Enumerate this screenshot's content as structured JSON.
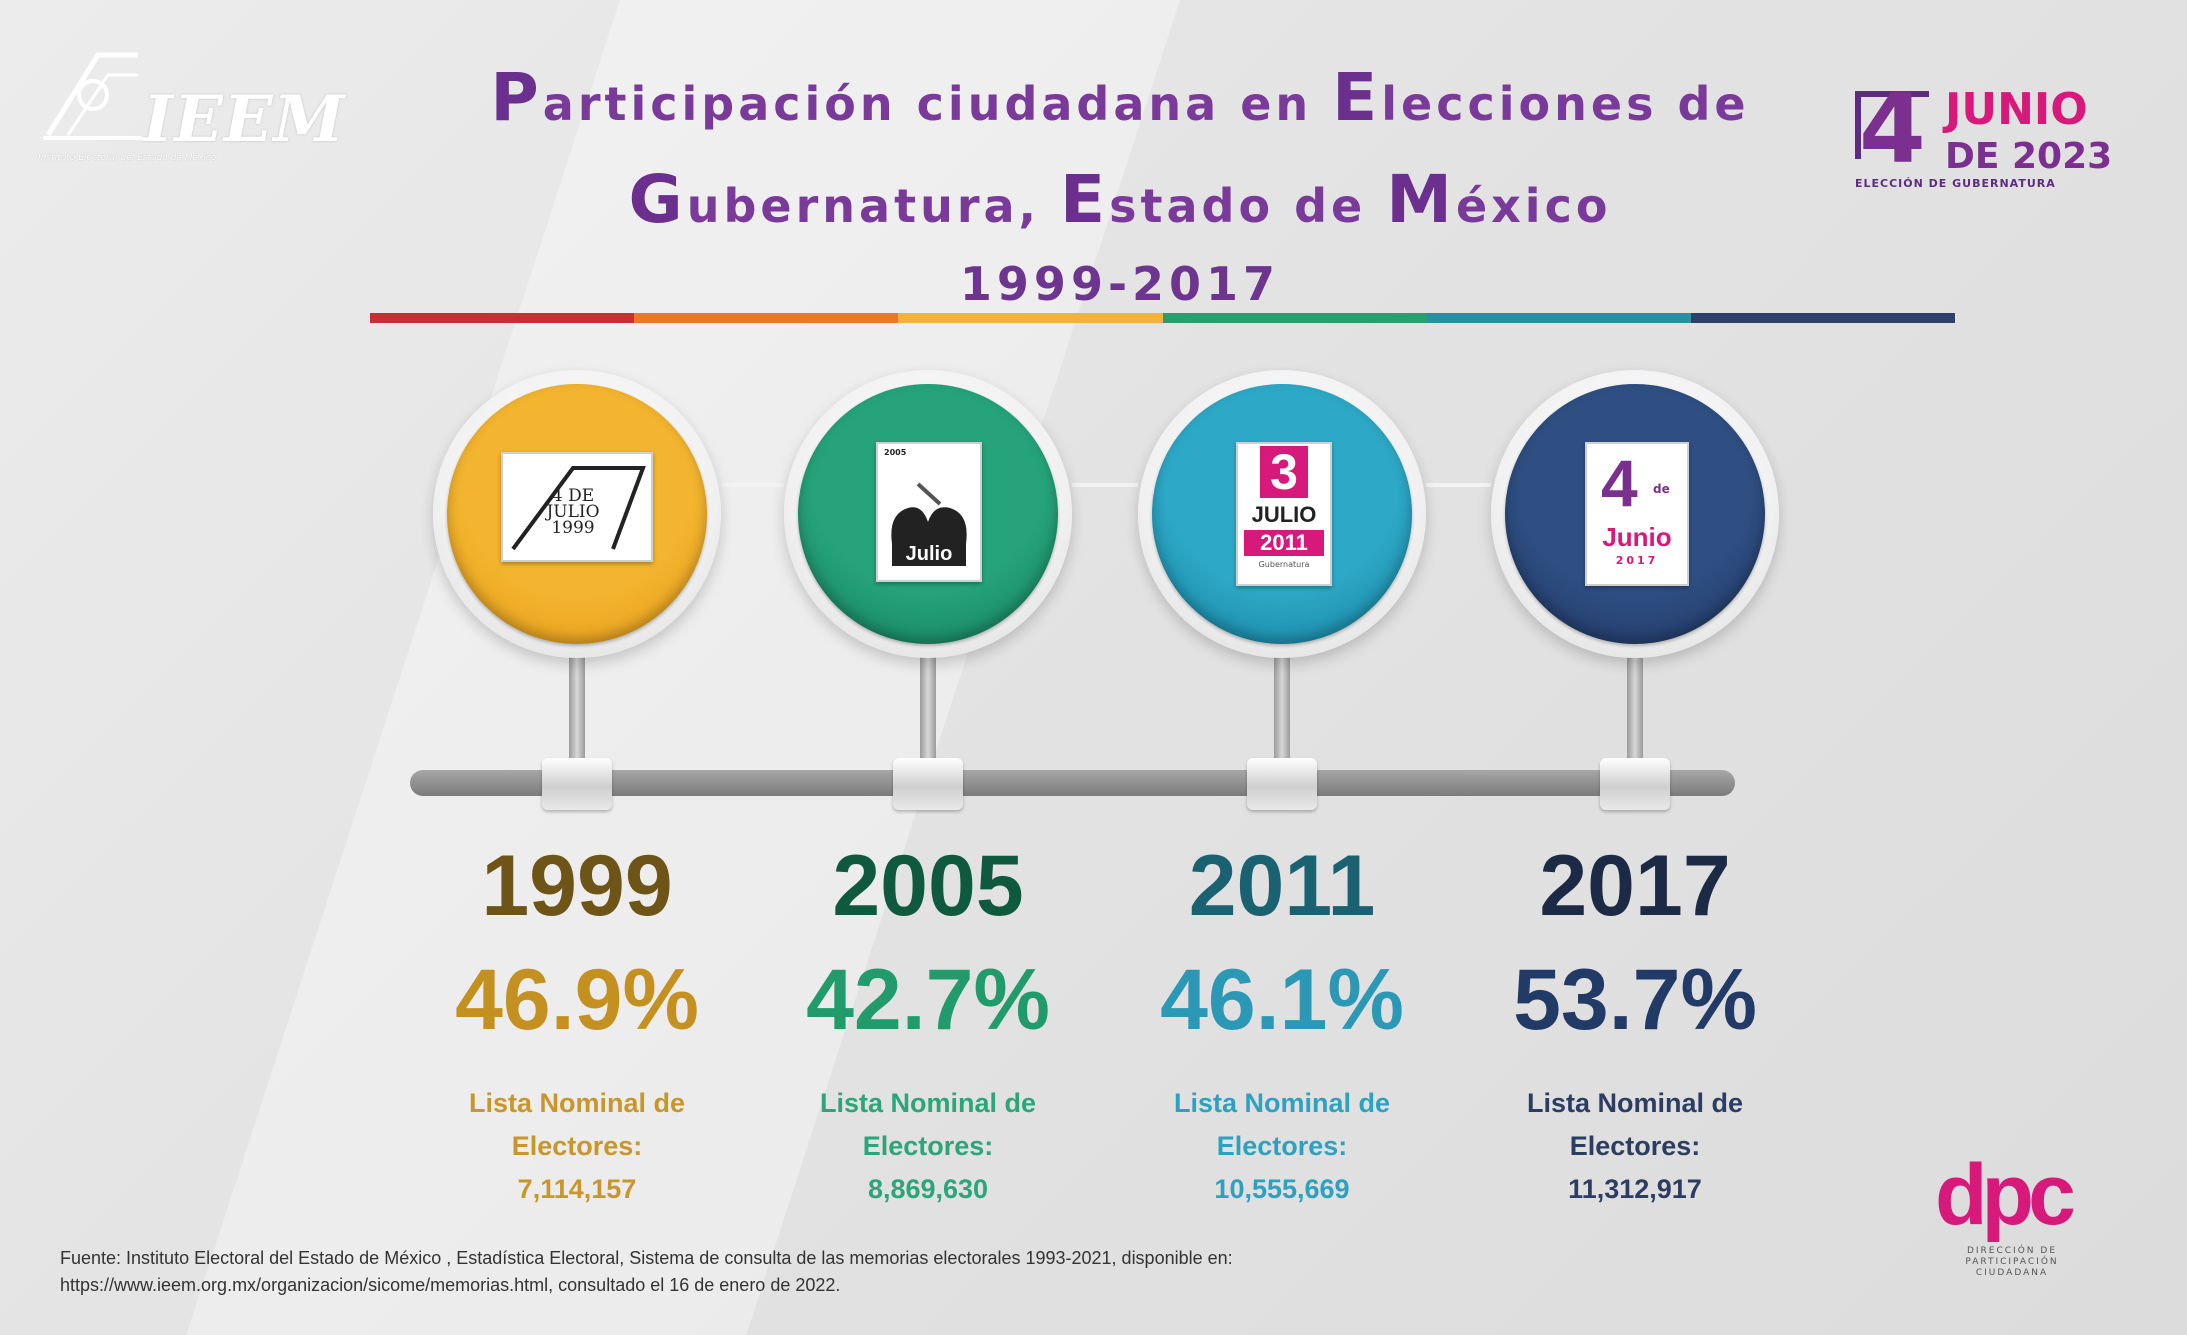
{
  "header": {
    "logo_left": {
      "name": "IEEM",
      "subtitle": "Instituto Electoral del Estado de México"
    },
    "title_line1": [
      {
        "cap": "P",
        "rest": "articipación ciudadana en "
      },
      {
        "cap": "E",
        "rest": "lecciones de"
      }
    ],
    "title_line2": [
      {
        "cap": "G",
        "rest": "ubernatura, "
      },
      {
        "cap": "E",
        "rest": "stado de "
      },
      {
        "cap": "M",
        "rest": "éxico"
      }
    ],
    "title_years": "1999-2017",
    "logo_right": {
      "day": "4",
      "month": "JUNIO",
      "year": "DE 2023",
      "caption": "ELECCIÓN DE GUBERNATURA"
    },
    "rainbow_colors": [
      "#c8302f",
      "#e8782a",
      "#f0b43c",
      "#2a9e6e",
      "#2a8fa5",
      "#2d3f6b"
    ]
  },
  "chart_data": {
    "type": "table",
    "title": "Participación ciudadana en Elecciones de Gubernatura, Estado de México 1999-2017",
    "categories": [
      "1999",
      "2005",
      "2011",
      "2017"
    ],
    "series": [
      {
        "name": "participacion",
        "values": [
          46.9,
          42.7,
          46.1,
          53.7
        ]
      },
      {
        "name": "Lista Nominal de Electores",
        "values": [
          7114157,
          8869630,
          10555669,
          11312917
        ]
      }
    ]
  },
  "timeline": [
    {
      "year": "1999",
      "participation": "46.9%",
      "nominal_label1": "Lista Nominal de",
      "nominal_label2": "Electores:",
      "nominal_value": "7,114,157",
      "badge_text": [
        "4 DE",
        "JULIO",
        "1999"
      ],
      "disc_color": "#f3b52f",
      "disc_dark": "#e69a16",
      "year_color": "#6e5416",
      "pct_color": "#c49120",
      "nominal_color": "#c8962a"
    },
    {
      "year": "2005",
      "participation": "42.7%",
      "nominal_label1": "Lista Nominal de",
      "nominal_label2": "Electores:",
      "nominal_value": "8,869,630",
      "badge_text": [
        "2005",
        "Julio"
      ],
      "disc_color": "#26a37a",
      "disc_dark": "#127d5b",
      "year_color": "#0f5a3f",
      "pct_color": "#229b6c",
      "nominal_color": "#2ca57a"
    },
    {
      "year": "2011",
      "participation": "46.1%",
      "nominal_label1": "Lista Nominal de",
      "nominal_label2": "Electores:",
      "nominal_value": "10,555,669",
      "badge_text": [
        "3",
        "JULIO",
        "2011",
        "Gubernatura"
      ],
      "disc_color": "#2da8c6",
      "disc_dark": "#127f9d",
      "year_color": "#1a6272",
      "pct_color": "#2b98b5",
      "nominal_color": "#2da2c0"
    },
    {
      "year": "2017",
      "participation": "53.7%",
      "nominal_label1": "Lista Nominal de",
      "nominal_label2": "Electores:",
      "nominal_value": "11,312,917",
      "badge_text": [
        "4",
        "de",
        "Junio",
        "2017"
      ],
      "disc_color": "#2f4f82",
      "disc_dark": "#1d3461",
      "year_color": "#1c2a45",
      "pct_color": "#223a66",
      "nominal_color": "#2b3d63"
    }
  ],
  "source": {
    "line1": "Fuente: Instituto Electoral del Estado de México , Estadística Electoral, Sistema de consulta de las memorias electorales 1993-2021, disponible en:",
    "line2": "https://www.ieem.org.mx/organizacion/sicome/memorias.html, consultado el 16 de enero de 2022."
  },
  "logo_bottom": {
    "mark": "dpc",
    "caption": [
      "DIRECCIÓN DE",
      "PARTICIPACIÓN",
      "CIUDADANA"
    ]
  }
}
